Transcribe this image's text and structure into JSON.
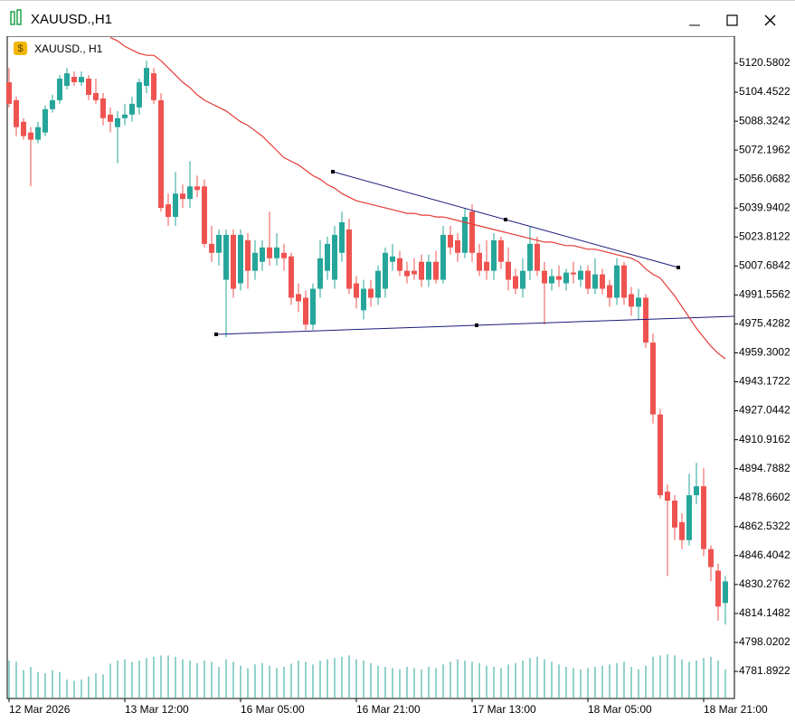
{
  "window": {
    "title": "XAUUSD.,H1"
  },
  "chart_data": {
    "type": "candlestick",
    "title": "XAUUSD., H1",
    "categories": [
      "12 Mar 2026",
      null,
      null,
      null,
      null,
      null,
      null,
      null,
      null,
      null,
      null,
      null,
      null,
      null,
      null,
      null,
      "13 Mar 12:00",
      null,
      null,
      null,
      null,
      null,
      null,
      null,
      null,
      null,
      null,
      null,
      null,
      null,
      null,
      null,
      "16 Mar 05:00",
      null,
      null,
      null,
      null,
      null,
      null,
      null,
      null,
      null,
      null,
      null,
      null,
      null,
      null,
      null,
      "16 Mar 21:00",
      null,
      null,
      null,
      null,
      null,
      null,
      null,
      null,
      null,
      null,
      null,
      null,
      null,
      null,
      null,
      "17 Mar 13:00",
      null,
      null,
      null,
      null,
      null,
      null,
      null,
      null,
      null,
      null,
      null,
      null,
      null,
      null,
      null,
      "18 Mar 05:00",
      null,
      null,
      null,
      null,
      null,
      null,
      null,
      null,
      null,
      null,
      null,
      null,
      null,
      null,
      null,
      "18 Mar 21:00",
      null,
      null,
      null
    ],
    "ohlc": [
      [
        5110,
        5118,
        5096,
        5098
      ],
      [
        5100,
        5102,
        5080,
        5085
      ],
      [
        5088,
        5090,
        5078,
        5080
      ],
      [
        5082,
        5085,
        5052,
        5078
      ],
      [
        5078,
        5088,
        5076,
        5085
      ],
      [
        5082,
        5097,
        5080,
        5095
      ],
      [
        5095,
        5103,
        5093,
        5100
      ],
      [
        5100,
        5114,
        5098,
        5112
      ],
      [
        5108,
        5118,
        5106,
        5115
      ],
      [
        5113,
        5116,
        5108,
        5110
      ],
      [
        5110,
        5116,
        5108,
        5113
      ],
      [
        5112,
        5114,
        5100,
        5103
      ],
      [
        5104,
        5112,
        5098,
        5100
      ],
      [
        5101,
        5104,
        5086,
        5090
      ],
      [
        5092,
        5096,
        5082,
        5088
      ],
      [
        5085,
        5094,
        5065,
        5090
      ],
      [
        5090,
        5098,
        5086,
        5092
      ],
      [
        5092,
        5102,
        5088,
        5098
      ],
      [
        5096,
        5112,
        5092,
        5110
      ],
      [
        5108,
        5122,
        5104,
        5118
      ],
      [
        5115,
        5118,
        5098,
        5100
      ],
      [
        5100,
        5104,
        5038,
        5040
      ],
      [
        5042,
        5048,
        5030,
        5035
      ],
      [
        5035,
        5060,
        5030,
        5048
      ],
      [
        5048,
        5053,
        5040,
        5045
      ],
      [
        5045,
        5066,
        5040,
        5052
      ],
      [
        5052,
        5058,
        5046,
        5050
      ],
      [
        5052,
        5056,
        5018,
        5020
      ],
      [
        5020,
        5030,
        5010,
        5015
      ],
      [
        5015,
        5028,
        5008,
        5025
      ],
      [
        5000,
        5028,
        4968,
        5025
      ],
      [
        5025,
        5028,
        4990,
        4995
      ],
      [
        4998,
        5028,
        4994,
        5025
      ],
      [
        5022,
        5026,
        4995,
        5005
      ],
      [
        5005,
        5022,
        5000,
        5015
      ],
      [
        5010,
        5022,
        5005,
        5018
      ],
      [
        5018,
        5038,
        5008,
        5012
      ],
      [
        5012,
        5026,
        5008,
        5018
      ],
      [
        5015,
        5020,
        5005,
        5012
      ],
      [
        5013,
        5015,
        4986,
        4990
      ],
      [
        4992,
        4998,
        4982,
        4988
      ],
      [
        4990,
        4994,
        4972,
        4975
      ],
      [
        4975,
        4998,
        4972,
        4995
      ],
      [
        4995,
        5022,
        4990,
        5012
      ],
      [
        5005,
        5024,
        5000,
        5020
      ],
      [
        5000,
        5030,
        4995,
        5025
      ],
      [
        5015,
        5038,
        5010,
        5032
      ],
      [
        5028,
        5034,
        4992,
        4995
      ],
      [
        4998,
        5002,
        4984,
        4990
      ],
      [
        4983,
        5000,
        4978,
        4995
      ],
      [
        4995,
        5000,
        4985,
        4990
      ],
      [
        4990,
        5008,
        4986,
        5005
      ],
      [
        4995,
        5018,
        4990,
        5015
      ],
      [
        5010,
        5020,
        5005,
        5013
      ],
      [
        5012,
        5016,
        5002,
        5005
      ],
      [
        5005,
        5010,
        4998,
        5002
      ],
      [
        5005,
        5012,
        5000,
        5003
      ],
      [
        5010,
        5014,
        4996,
        5000
      ],
      [
        5000,
        5014,
        4996,
        5010
      ],
      [
        5010,
        5016,
        4998,
        5000
      ],
      [
        5000,
        5030,
        4998,
        5025
      ],
      [
        5025,
        5030,
        5014,
        5018
      ],
      [
        5022,
        5026,
        5010,
        5015
      ],
      [
        5015,
        5040,
        5012,
        5035
      ],
      [
        5038,
        5042,
        5010,
        5015
      ],
      [
        5015,
        5020,
        5002,
        5005
      ],
      [
        5010,
        5022,
        5000,
        5005
      ],
      [
        5005,
        5026,
        5000,
        5022
      ],
      [
        5022,
        5024,
        5006,
        5010
      ],
      [
        5010,
        5018,
        4994,
        5000
      ],
      [
        5002,
        5006,
        4992,
        4995
      ],
      [
        4995,
        5012,
        4990,
        5005
      ],
      [
        5005,
        5030,
        5000,
        5020
      ],
      [
        5020,
        5024,
        5002,
        5005
      ],
      [
        5005,
        5010,
        4975,
        4998
      ],
      [
        4998,
        5006,
        4994,
        5002
      ],
      [
        5002,
        5008,
        4996,
        5000
      ],
      [
        4998,
        5006,
        4994,
        5004
      ],
      [
        5004,
        5010,
        4998,
        5003
      ],
      [
        5000,
        5008,
        4996,
        5005
      ],
      [
        5005,
        5008,
        4992,
        4995
      ],
      [
        4995,
        5012,
        4992,
        5003
      ],
      [
        5003,
        5006,
        4992,
        4995
      ],
      [
        4997,
        5000,
        4985,
        4990
      ],
      [
        4990,
        5012,
        4986,
        5008
      ],
      [
        5008,
        5010,
        4986,
        4990
      ],
      [
        4992,
        4996,
        4980,
        4985
      ],
      [
        4985,
        4995,
        4978,
        4990
      ],
      [
        4990,
        4992,
        4962,
        4965
      ],
      [
        4965,
        4970,
        4920,
        4925
      ],
      [
        4925,
        4928,
        4878,
        4880
      ],
      [
        4882,
        4886,
        4835,
        4877
      ],
      [
        4877,
        4880,
        4855,
        4862
      ],
      [
        4865,
        4870,
        4850,
        4855
      ],
      [
        4855,
        4892,
        4852,
        4880
      ],
      [
        4880,
        4898,
        4875,
        4885
      ],
      [
        4885,
        4895,
        4846,
        4850
      ],
      [
        4850,
        4852,
        4832,
        4840
      ],
      [
        4838,
        4842,
        4810,
        4818
      ],
      [
        4820,
        4835,
        4808,
        4832
      ]
    ],
    "ma": [
      null,
      null,
      null,
      null,
      null,
      null,
      null,
      null,
      null,
      null,
      null,
      null,
      null,
      null,
      5135,
      5133,
      5130,
      5128,
      5126,
      5125,
      5125,
      5122,
      5118,
      5114,
      5110,
      5107,
      5103,
      5100,
      5098,
      5096,
      5094,
      5091,
      5088,
      5086,
      5083,
      5080,
      5076,
      5072,
      5068,
      5066,
      5064,
      5061,
      5058,
      5056,
      5053,
      5051,
      5048,
      5046,
      5044,
      5043,
      5042,
      5041,
      5040,
      5039,
      5038,
      5037,
      5037,
      5036,
      5036,
      5035,
      5035,
      5034,
      5033,
      5032,
      5031,
      5030,
      5029,
      5028,
      5027,
      5026,
      5025,
      5024,
      5023,
      5022,
      5021,
      5021,
      5020,
      5019,
      5019,
      5018,
      5017,
      5017,
      5016,
      5015,
      5014,
      5013,
      5012,
      5010,
      5006,
      5003,
      5001,
      4996,
      4991,
      4985,
      4979,
      4973,
      4968,
      4963,
      4959,
      4956
    ],
    "volumes": [
      60,
      58,
      45,
      50,
      42,
      40,
      45,
      42,
      30,
      28,
      30,
      35,
      40,
      38,
      55,
      60,
      62,
      58,
      60,
      64,
      66,
      68,
      68,
      66,
      62,
      60,
      56,
      60,
      58,
      50,
      62,
      58,
      52,
      48,
      54,
      56,
      52,
      48,
      50,
      55,
      60,
      58,
      54,
      60,
      62,
      64,
      66,
      68,
      62,
      60,
      56,
      52,
      50,
      48,
      46,
      50,
      48,
      46,
      50,
      48,
      54,
      58,
      62,
      60,
      58,
      56,
      52,
      50,
      48,
      54,
      56,
      60,
      64,
      66,
      62,
      58,
      54,
      50,
      48,
      46,
      48,
      50,
      52,
      54,
      56,
      58,
      50,
      46,
      52,
      66,
      68,
      70,
      68,
      62,
      58,
      60,
      64,
      66,
      60,
      46
    ],
    "up_color": "#26a69a",
    "down_color": "#ef5350",
    "ma_color": "#e53935",
    "volume_color": "#26a69a",
    "xlim": [
      -0.25,
      100.25
    ],
    "ylim": [
      4766.79,
      5135.68
    ],
    "yticks": [
      5120.5802,
      5104.4522,
      5088.3242,
      5072.1962,
      5056.0682,
      5039.9402,
      5023.8122,
      5007.6842,
      4991.5562,
      4975.4282,
      4959.3002,
      4943.1722,
      4927.0442,
      4910.9162,
      4894.7882,
      4878.6602,
      4862.5322,
      4846.4042,
      4830.2762,
      4814.1482,
      4798.0202,
      4781.8922
    ],
    "volume_lim": [
      0,
      100
    ]
  }
}
